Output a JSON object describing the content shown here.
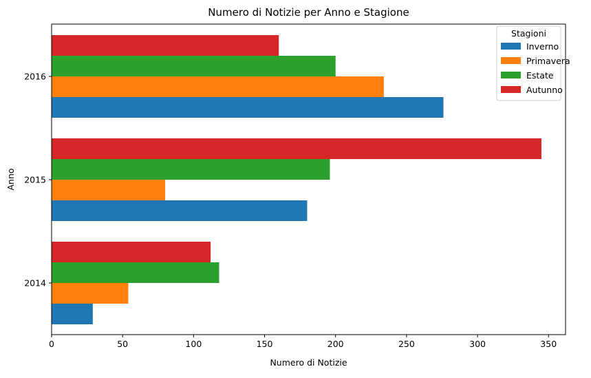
{
  "chart_data": {
    "type": "bar",
    "orientation": "horizontal",
    "title": "Numero di Notizie per Anno e Stagione",
    "xlabel": "Numero di Notizie",
    "ylabel": "Anno",
    "categories": [
      "2014",
      "2015",
      "2016"
    ],
    "xlim": [
      0,
      362
    ],
    "xticks": [
      0,
      50,
      100,
      150,
      200,
      250,
      300,
      350
    ],
    "grid": false,
    "legend": {
      "title": "Stagioni",
      "position": "top-right"
    },
    "series": [
      {
        "name": "Inverno",
        "color": "#1f77b4",
        "values": [
          29,
          180,
          276
        ]
      },
      {
        "name": "Primavera",
        "color": "#ff7f0e",
        "values": [
          54,
          80,
          234
        ]
      },
      {
        "name": "Estate",
        "color": "#2ca02c",
        "values": [
          118,
          196,
          200
        ]
      },
      {
        "name": "Autunno",
        "color": "#d62728",
        "values": [
          112,
          345,
          160
        ]
      }
    ]
  }
}
